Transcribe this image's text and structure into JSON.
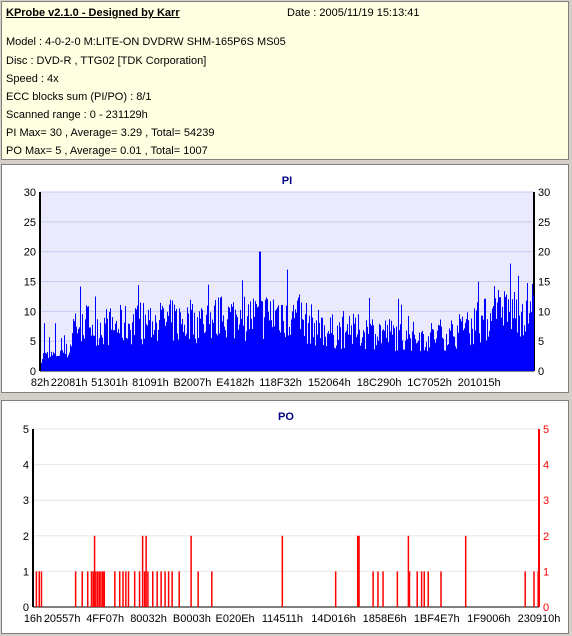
{
  "info": {
    "title": "KProbe v2.1.0 - Designed by Karr",
    "date": "Date : 2005/11/19 15:13:41",
    "lines": [
      "Model : 4-0-2-0 M:LITE-ON DVDRW SHM-165P6S MS05",
      "Disc : DVD-R , TTG02 [TDK Corporation]",
      "Speed : 4x",
      "ECC blocks sum (PI/PO) : 8/1",
      "Scanned range : 0 - 231129h",
      "PI Max= 30 , Average= 3.29 , Total= 54239",
      "PO Max= 5 , Average= 0.01 , Total= 1007"
    ]
  },
  "chart_data": [
    {
      "type": "bar",
      "title": "PI",
      "color": "#0000ff",
      "ylim": [
        0,
        30
      ],
      "yticks": [
        0,
        5,
        10,
        15,
        20,
        25,
        30
      ],
      "xlim": [
        0,
        230910
      ],
      "xticks": [
        {
          "label": "82h",
          "x": 130
        },
        {
          "label": "22081h",
          "x": 139393
        },
        {
          "label": "51301h",
          "x": 332545
        },
        {
          "label": "81091h",
          "x": 528529
        },
        {
          "label": "B2007h",
          "x": 729095
        },
        {
          "label": "E4182h",
          "x": 934274
        },
        {
          "label": "118F32h",
          "x": 1150770
        },
        {
          "label": "152064h",
          "x": 1384548
        },
        {
          "label": "18C290h",
          "x": 1622672
        },
        {
          "label": "1C7052h",
          "x": 1863762
        },
        {
          "label": "201015h",
          "x": 2101269
        }
      ],
      "x_max_hex_value": 2363664,
      "envelope": [
        [
          0,
          3
        ],
        [
          50000,
          3
        ],
        [
          100000,
          4
        ],
        [
          139393,
          4
        ],
        [
          160000,
          10
        ],
        [
          332545,
          9
        ],
        [
          528529,
          10
        ],
        [
          729095,
          10
        ],
        [
          934274,
          11
        ],
        [
          1050000,
          11
        ],
        [
          1150770,
          12
        ],
        [
          1260000,
          10
        ],
        [
          1384548,
          8
        ],
        [
          1500000,
          8
        ],
        [
          1622672,
          8
        ],
        [
          1740000,
          7
        ],
        [
          1863762,
          7
        ],
        [
          2000000,
          8
        ],
        [
          2101269,
          10
        ],
        [
          2250000,
          12
        ],
        [
          2363664,
          13
        ]
      ],
      "peaks": [
        {
          "x": 20000,
          "value": 8
        },
        {
          "x": 70000,
          "value": 8
        },
        {
          "x": 1050000,
          "value": 20
        },
        {
          "x": 1180000,
          "value": 17
        },
        {
          "x": 2250000,
          "value": 18
        }
      ]
    },
    {
      "type": "bar",
      "title": "PO",
      "color": "#ff0000",
      "ylim": [
        0,
        5
      ],
      "yticks": [
        0,
        1,
        2,
        3,
        4,
        5
      ],
      "xticks": [
        {
          "label": "16h",
          "x": 22
        },
        {
          "label": "20557h",
          "x": 132439
        },
        {
          "label": "4FF07h",
          "x": 327431
        },
        {
          "label": "80032h",
          "x": 524338
        },
        {
          "label": "B0003h",
          "x": 720899
        },
        {
          "label": "E020Eh",
          "x": 917006
        },
        {
          "label": "114511h",
          "x": 1131793
        },
        {
          "label": "14D016h",
          "x": 1364006
        },
        {
          "label": "1858E6h",
          "x": 1595622
        },
        {
          "label": "1BF4E7h",
          "x": 1832167
        },
        {
          "label": "1F9006h",
          "x": 2068486
        },
        {
          "label": "230910h",
          "x": 2296080
        }
      ],
      "x_max_hex_value": 2296080,
      "bars": [
        {
          "x": 12000,
          "value": 1
        },
        {
          "x": 25000,
          "value": 1
        },
        {
          "x": 35000,
          "value": 1
        },
        {
          "x": 190000,
          "value": 1
        },
        {
          "x": 220000,
          "value": 1
        },
        {
          "x": 245000,
          "value": 1
        },
        {
          "x": 262000,
          "value": 1
        },
        {
          "x": 270000,
          "value": 1
        },
        {
          "x": 276000,
          "value": 2
        },
        {
          "x": 282000,
          "value": 1
        },
        {
          "x": 290000,
          "value": 1
        },
        {
          "x": 298000,
          "value": 1
        },
        {
          "x": 305000,
          "value": 1
        },
        {
          "x": 313000,
          "value": 1
        },
        {
          "x": 320000,
          "value": 1
        },
        {
          "x": 368000,
          "value": 1
        },
        {
          "x": 390000,
          "value": 1
        },
        {
          "x": 405000,
          "value": 1
        },
        {
          "x": 418000,
          "value": 1
        },
        {
          "x": 430000,
          "value": 1
        },
        {
          "x": 458000,
          "value": 1
        },
        {
          "x": 480000,
          "value": 1
        },
        {
          "x": 494000,
          "value": 2
        },
        {
          "x": 503000,
          "value": 1
        },
        {
          "x": 510000,
          "value": 2
        },
        {
          "x": 518000,
          "value": 1
        },
        {
          "x": 540000,
          "value": 1
        },
        {
          "x": 560000,
          "value": 1
        },
        {
          "x": 578000,
          "value": 1
        },
        {
          "x": 596000,
          "value": 1
        },
        {
          "x": 612000,
          "value": 1
        },
        {
          "x": 628000,
          "value": 1
        },
        {
          "x": 660000,
          "value": 1
        },
        {
          "x": 714000,
          "value": 2
        },
        {
          "x": 746000,
          "value": 1
        },
        {
          "x": 808000,
          "value": 1
        },
        {
          "x": 1128000,
          "value": 2
        },
        {
          "x": 1370000,
          "value": 1
        },
        {
          "x": 1470000,
          "value": 2
        },
        {
          "x": 1476000,
          "value": 2
        },
        {
          "x": 1540000,
          "value": 1
        },
        {
          "x": 1562000,
          "value": 1
        },
        {
          "x": 1585000,
          "value": 1
        },
        {
          "x": 1650000,
          "value": 1
        },
        {
          "x": 1700000,
          "value": 2
        },
        {
          "x": 1705000,
          "value": 1
        },
        {
          "x": 1740000,
          "value": 1
        },
        {
          "x": 1760000,
          "value": 1
        },
        {
          "x": 1772000,
          "value": 1
        },
        {
          "x": 1790000,
          "value": 1
        },
        {
          "x": 1848000,
          "value": 1
        },
        {
          "x": 1960000,
          "value": 2
        },
        {
          "x": 2230000,
          "value": 1
        },
        {
          "x": 2270000,
          "value": 1
        },
        {
          "x": 2289000,
          "value": 1
        }
      ]
    }
  ]
}
